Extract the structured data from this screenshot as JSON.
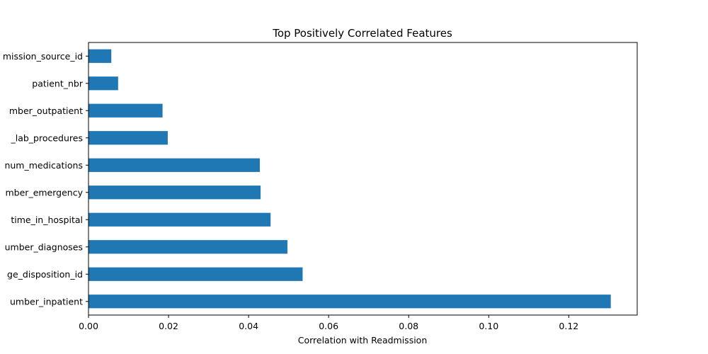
{
  "chart_data": {
    "type": "bar",
    "orientation": "horizontal",
    "title": "Top Positively Correlated Features",
    "xlabel": "Correlation with Readmission",
    "ylabel": "",
    "xlim": [
      0,
      0.1371
    ],
    "xticks": [
      0.0,
      0.02,
      0.04,
      0.06,
      0.08,
      0.1,
      0.12
    ],
    "xtick_labels": [
      "0.00",
      "0.02",
      "0.04",
      "0.06",
      "0.08",
      "0.10",
      "0.12"
    ],
    "grid": false,
    "legend": "none",
    "bar_color": "#1f77b4",
    "categories": [
      "number_inpatient",
      "discharge_disposition_id",
      "number_diagnoses",
      "time_in_hospital",
      "number_emergency",
      "num_medications",
      "num_lab_procedures",
      "number_outpatient",
      "patient_nbr",
      "admission_source_id"
    ],
    "category_labels_visible": [
      "umber_inpatient",
      "ge_disposition_id",
      "umber_diagnoses",
      "time_in_hospital",
      "mber_emergency",
      "num_medications",
      "_lab_procedures",
      "mber_outpatient",
      "patient_nbr",
      "mission_source_id"
    ],
    "values": [
      0.1305,
      0.0535,
      0.0497,
      0.0455,
      0.043,
      0.0428,
      0.0198,
      0.0185,
      0.0074,
      0.0057
    ]
  }
}
